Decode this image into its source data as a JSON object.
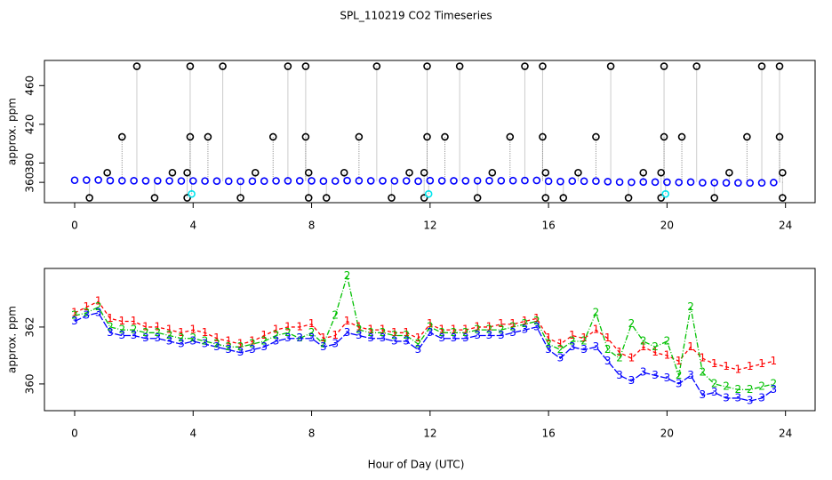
{
  "chart_data": [
    {
      "type": "scatter",
      "title": "SPL_110219  CO2 Timeseries",
      "y_label": "approx. ppm",
      "xlim": [
        -1.02,
        25.0
      ],
      "ylim": [
        339,
        486
      ],
      "xticks": [
        0,
        4,
        8,
        12,
        16,
        20,
        24
      ],
      "yticks": [
        360,
        380,
        420,
        460
      ],
      "series": [
        {
          "color": "#0000ff",
          "x": [
            0.0,
            0.4,
            0.8,
            1.2,
            1.6,
            2.0,
            2.4,
            2.8,
            3.2,
            3.6,
            4.0,
            4.4,
            4.8,
            5.2,
            5.6,
            6.0,
            6.4,
            6.8,
            7.2,
            7.6,
            8.0,
            8.4,
            8.8,
            9.2,
            9.6,
            10.0,
            10.4,
            10.8,
            11.2,
            11.6,
            12.0,
            12.4,
            12.8,
            13.2,
            13.6,
            14.0,
            14.4,
            14.8,
            15.2,
            15.6,
            16.0,
            16.4,
            16.8,
            17.2,
            17.6,
            18.0,
            18.4,
            18.8,
            19.2,
            19.6,
            20.0,
            20.4,
            20.8,
            21.2,
            21.6,
            22.0,
            22.4,
            22.8,
            23.2,
            23.6
          ],
          "values": [
            362.2,
            362.4,
            362.5,
            361.8,
            361.7,
            361.7,
            361.6,
            361.6,
            361.5,
            361.4,
            361.5,
            361.4,
            361.3,
            361.2,
            361.1,
            361.2,
            361.3,
            361.5,
            361.6,
            361.6,
            361.6,
            361.3,
            361.4,
            361.8,
            361.7,
            361.6,
            361.6,
            361.5,
            361.5,
            361.2,
            361.8,
            361.6,
            361.6,
            361.6,
            361.7,
            361.7,
            361.7,
            361.8,
            361.9,
            362.0,
            361.2,
            360.9,
            361.3,
            361.2,
            361.3,
            360.8,
            360.3,
            360.1,
            360.4,
            360.3,
            360.2,
            360.0,
            360.3,
            359.6,
            359.7,
            359.5,
            359.5,
            359.4,
            359.5,
            359.8
          ]
        },
        {
          "color": "#000000",
          "x": [
            0.5,
            1.1,
            1.6,
            2.1,
            2.7,
            3.3,
            3.8,
            3.8,
            3.9,
            3.9,
            4.5,
            5.0,
            5.6,
            6.1,
            6.7,
            7.2,
            7.8,
            7.8,
            7.9,
            7.9,
            8.5,
            9.1,
            9.6,
            10.2,
            10.7,
            11.3,
            11.8,
            11.8,
            11.9,
            11.9,
            12.5,
            13.0,
            13.6,
            14.1,
            14.7,
            15.2,
            15.8,
            15.8,
            15.9,
            15.9,
            16.5,
            17.0,
            17.6,
            18.1,
            18.7,
            19.2,
            19.8,
            19.8,
            19.9,
            19.9,
            20.5,
            21.0,
            21.6,
            22.1,
            22.7,
            23.2,
            23.8,
            23.8,
            23.9,
            23.9
          ],
          "values": [
            344,
            370,
            407,
            480,
            344,
            370,
            344,
            370,
            407,
            480,
            407,
            480,
            344,
            370,
            407,
            480,
            480,
            407,
            370,
            344,
            344,
            370,
            407,
            480,
            344,
            370,
            344,
            370,
            407,
            480,
            407,
            480,
            344,
            370,
            407,
            480,
            480,
            407,
            370,
            344,
            344,
            370,
            407,
            480,
            344,
            370,
            344,
            370,
            407,
            480,
            407,
            480,
            344,
            370,
            407,
            480,
            480,
            407,
            370,
            344
          ]
        },
        {
          "color": "#00e5ee",
          "x": [
            3.95,
            11.95,
            19.95
          ],
          "values": [
            348,
            348,
            348
          ]
        }
      ]
    },
    {
      "type": "line",
      "x_label": "Hour of Day (UTC)",
      "y_label": "approx. ppm",
      "xlim": [
        -1.02,
        25.0
      ],
      "ylim": [
        359.06,
        364.06
      ],
      "xticks": [
        0,
        4,
        8,
        12,
        16,
        20,
        24
      ],
      "yticks": [
        360,
        362
      ],
      "x": [
        0.0,
        0.4,
        0.8,
        1.2,
        1.6,
        2.0,
        2.4,
        2.8,
        3.2,
        3.6,
        4.0,
        4.4,
        4.8,
        5.2,
        5.6,
        6.0,
        6.4,
        6.8,
        7.2,
        7.6,
        8.0,
        8.4,
        8.8,
        9.2,
        9.6,
        10.0,
        10.4,
        10.8,
        11.2,
        11.6,
        12.0,
        12.4,
        12.8,
        13.2,
        13.6,
        14.0,
        14.4,
        14.8,
        15.2,
        15.6,
        16.0,
        16.4,
        16.8,
        17.2,
        17.6,
        18.0,
        18.4,
        18.8,
        19.2,
        19.6,
        20.0,
        20.4,
        20.8,
        21.2,
        21.6,
        22.0,
        22.4,
        22.8,
        23.2,
        23.6
      ],
      "series": [
        {
          "color": "#ff0000",
          "marker": "1",
          "dash": "4 3",
          "values": [
            362.5,
            362.7,
            362.9,
            362.3,
            362.2,
            362.2,
            362.0,
            362.0,
            361.9,
            361.8,
            361.9,
            361.8,
            361.6,
            361.5,
            361.4,
            361.5,
            361.7,
            361.9,
            362.0,
            362.0,
            362.1,
            361.6,
            361.7,
            362.2,
            362.0,
            361.9,
            361.9,
            361.8,
            361.8,
            361.6,
            362.1,
            361.9,
            361.9,
            361.9,
            362.0,
            362.0,
            362.1,
            362.1,
            362.2,
            362.3,
            361.6,
            361.4,
            361.7,
            361.6,
            361.9,
            361.6,
            361.1,
            360.9,
            361.3,
            361.1,
            361.0,
            360.8,
            361.3,
            360.9,
            360.7,
            360.6,
            360.5,
            360.6,
            360.7,
            360.8
          ]
        },
        {
          "color": "#00c000",
          "marker": "2",
          "dash": "6 2 1 2",
          "values": [
            362.4,
            362.5,
            362.7,
            362.0,
            361.9,
            361.9,
            361.8,
            361.8,
            361.7,
            361.6,
            361.6,
            361.5,
            361.4,
            361.3,
            361.3,
            361.4,
            361.5,
            361.7,
            361.8,
            361.6,
            361.8,
            361.4,
            362.4,
            363.8,
            361.9,
            361.8,
            361.8,
            361.7,
            361.7,
            361.4,
            362.0,
            361.8,
            361.8,
            361.8,
            361.9,
            361.9,
            361.9,
            362.0,
            362.1,
            362.2,
            361.4,
            361.2,
            361.5,
            361.5,
            362.5,
            361.2,
            360.9,
            362.1,
            361.5,
            361.3,
            361.5,
            360.3,
            362.7,
            360.4,
            360.0,
            359.9,
            359.8,
            359.8,
            359.9,
            360.0
          ]
        },
        {
          "color": "#0000ff",
          "marker": "3",
          "dash": "8 2",
          "values": [
            362.2,
            362.4,
            362.5,
            361.8,
            361.7,
            361.7,
            361.6,
            361.6,
            361.5,
            361.4,
            361.5,
            361.4,
            361.3,
            361.2,
            361.1,
            361.2,
            361.3,
            361.5,
            361.6,
            361.6,
            361.6,
            361.3,
            361.4,
            361.8,
            361.7,
            361.6,
            361.6,
            361.5,
            361.5,
            361.2,
            361.8,
            361.6,
            361.6,
            361.6,
            361.7,
            361.7,
            361.7,
            361.8,
            361.9,
            362.0,
            361.2,
            360.9,
            361.3,
            361.2,
            361.3,
            360.8,
            360.3,
            360.1,
            360.4,
            360.3,
            360.2,
            360.0,
            360.3,
            359.6,
            359.7,
            359.5,
            359.5,
            359.4,
            359.5,
            359.8
          ]
        }
      ]
    }
  ]
}
